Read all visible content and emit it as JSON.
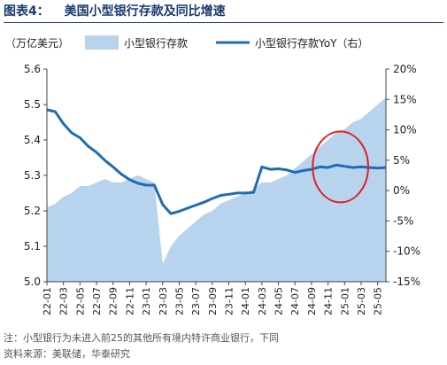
{
  "figure": {
    "label": "图表4：",
    "title": "美国小型银行存款及同比增速"
  },
  "notes": {
    "note": "注：小型银行为未进入前25的其他所有境内特许商业银行，下同",
    "source": "资料来源：美联储，华泰研究"
  },
  "colors": {
    "area_fill": "#b8d3ee",
    "line": "#1f6cb3",
    "highlight_circle": "#e0201b",
    "title": "#1a3a6e"
  },
  "chart_data": {
    "type": "area",
    "left_axis_label": "（万亿美元）",
    "ylim_left": [
      5.0,
      5.6
    ],
    "yticks_left": [
      "5.0",
      "5.1",
      "5.2",
      "5.3",
      "5.4",
      "5.5",
      "5.6"
    ],
    "ylim_right": [
      -15,
      20
    ],
    "yticks_right": [
      "-15%",
      "-10%",
      "-5%",
      "0%",
      "5%",
      "10%",
      "15%",
      "20%"
    ],
    "x_tick_labels": [
      "22-01",
      "22-03",
      "22-05",
      "22-07",
      "22-09",
      "22-11",
      "23-01",
      "23-03",
      "23-05",
      "23-07",
      "23-09",
      "23-11",
      "24-01",
      "24-03",
      "24-05",
      "24-07",
      "24-09",
      "24-11",
      "25-01",
      "25-03",
      "25-05"
    ],
    "x_range": [
      "2022-01",
      "2025-06"
    ],
    "grid": false,
    "legend_position": "top",
    "series": [
      {
        "name": "小型银行存款",
        "axis": "left",
        "kind": "area",
        "points": [
          [
            "2022-01",
            5.21
          ],
          [
            "2022-02",
            5.22
          ],
          [
            "2022-03",
            5.24
          ],
          [
            "2022-04",
            5.25
          ],
          [
            "2022-05",
            5.27
          ],
          [
            "2022-06",
            5.27
          ],
          [
            "2022-07",
            5.28
          ],
          [
            "2022-08",
            5.29
          ],
          [
            "2022-09",
            5.28
          ],
          [
            "2022-10",
            5.28
          ],
          [
            "2022-11",
            5.29
          ],
          [
            "2022-12",
            5.3
          ],
          [
            "2023-01",
            5.29
          ],
          [
            "2023-02",
            5.28
          ],
          [
            "2023-03",
            5.05
          ],
          [
            "2023-04",
            5.1
          ],
          [
            "2023-05",
            5.13
          ],
          [
            "2023-06",
            5.15
          ],
          [
            "2023-07",
            5.17
          ],
          [
            "2023-08",
            5.19
          ],
          [
            "2023-09",
            5.2
          ],
          [
            "2023-10",
            5.22
          ],
          [
            "2023-11",
            5.23
          ],
          [
            "2023-12",
            5.24
          ],
          [
            "2024-01",
            5.25
          ],
          [
            "2024-02",
            5.26
          ],
          [
            "2024-03",
            5.28
          ],
          [
            "2024-04",
            5.28
          ],
          [
            "2024-05",
            5.29
          ],
          [
            "2024-06",
            5.3
          ],
          [
            "2024-07",
            5.32
          ],
          [
            "2024-08",
            5.34
          ],
          [
            "2024-09",
            5.36
          ],
          [
            "2024-10",
            5.38
          ],
          [
            "2024-11",
            5.4
          ],
          [
            "2024-12",
            5.42
          ],
          [
            "2025-01",
            5.43
          ],
          [
            "2025-02",
            5.45
          ],
          [
            "2025-03",
            5.46
          ],
          [
            "2025-04",
            5.48
          ],
          [
            "2025-05",
            5.5
          ],
          [
            "2025-06",
            5.52
          ]
        ]
      },
      {
        "name": "小型银行存款YoY（右）",
        "axis": "right",
        "kind": "line",
        "points": [
          [
            "2022-01",
            13.3
          ],
          [
            "2022-02",
            13.0
          ],
          [
            "2022-03",
            11.0
          ],
          [
            "2022-04",
            9.5
          ],
          [
            "2022-05",
            8.7
          ],
          [
            "2022-06",
            7.3
          ],
          [
            "2022-07",
            6.3
          ],
          [
            "2022-08",
            5.0
          ],
          [
            "2022-09",
            3.9
          ],
          [
            "2022-10",
            2.7
          ],
          [
            "2022-11",
            1.8
          ],
          [
            "2022-12",
            1.2
          ],
          [
            "2023-01",
            0.9
          ],
          [
            "2023-02",
            0.9
          ],
          [
            "2023-03",
            -2.3
          ],
          [
            "2023-04",
            -3.8
          ],
          [
            "2023-05",
            -3.4
          ],
          [
            "2023-06",
            -2.9
          ],
          [
            "2023-07",
            -2.4
          ],
          [
            "2023-08",
            -1.9
          ],
          [
            "2023-09",
            -1.3
          ],
          [
            "2023-10",
            -0.8
          ],
          [
            "2023-11",
            -0.6
          ],
          [
            "2023-12",
            -0.4
          ],
          [
            "2024-01",
            -0.4
          ],
          [
            "2024-02",
            -0.3
          ],
          [
            "2024-03",
            3.9
          ],
          [
            "2024-04",
            3.5
          ],
          [
            "2024-05",
            3.6
          ],
          [
            "2024-06",
            3.4
          ],
          [
            "2024-07",
            3.0
          ],
          [
            "2024-08",
            3.3
          ],
          [
            "2024-09",
            3.5
          ],
          [
            "2024-10",
            3.9
          ],
          [
            "2024-11",
            3.8
          ],
          [
            "2024-12",
            4.2
          ],
          [
            "2025-01",
            4.0
          ],
          [
            "2025-02",
            3.8
          ],
          [
            "2025-03",
            3.9
          ],
          [
            "2025-04",
            3.8
          ],
          [
            "2025-05",
            3.7
          ],
          [
            "2025-06",
            3.8
          ]
        ]
      }
    ],
    "annotation": {
      "type": "circle",
      "from": "2024-10",
      "to": "2025-03",
      "value": 3.9,
      "axis": "right"
    }
  }
}
